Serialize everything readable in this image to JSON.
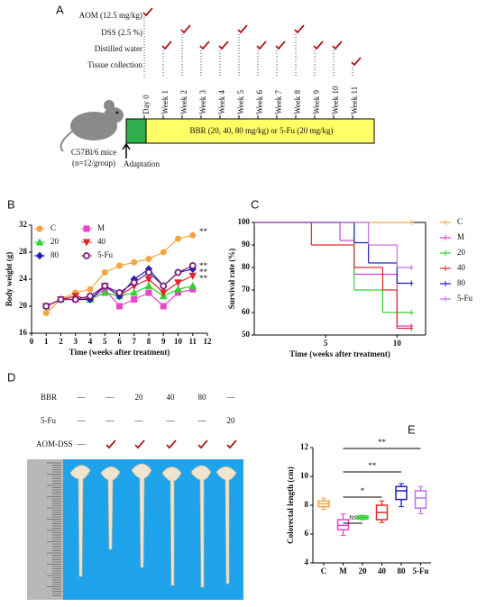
{
  "panel_a": {
    "letter": "A",
    "schedule": [
      "AOM (12.5 mg/kg)",
      "DSS (2.5 %)",
      "Distilled water",
      "Tissue collection"
    ],
    "timeline": [
      "Day 0",
      "Week 1",
      "Week 2",
      "Week 3",
      "Week 4",
      "Week 5",
      "Week 6",
      "Week 7",
      "Week 8",
      "Week 9",
      "Week 10",
      "Week 11"
    ],
    "treatment": "BBR (20, 40, 80 mg/kg) or 5-Fu (20 mg/kg)",
    "mouse": "C57Bl/6 mice",
    "group": "(n=12/group)",
    "adaptation": "Adaptation"
  },
  "panel_d": {
    "letter": "D",
    "rows": [
      {
        "label": "BBR",
        "cells": [
          "—",
          "—",
          "20",
          "40",
          "80",
          "—"
        ]
      },
      {
        "label": "5-Fu",
        "cells": [
          "—",
          "—",
          "—",
          "—",
          "—",
          "20"
        ]
      }
    ],
    "aom_dss": {
      "label": "AOM-DSS",
      "control": "—"
    }
  },
  "chart_data": [
    {
      "type": "line",
      "letter": "B",
      "x_label": "Time (weeks after treatment)",
      "y_label": "Body weight (g)",
      "x": [
        1,
        2,
        3,
        4,
        5,
        6,
        7,
        8,
        9,
        10,
        11
      ],
      "xlim": [
        0,
        12
      ],
      "xticks": [
        0,
        1,
        2,
        3,
        4,
        5,
        6,
        7,
        8,
        9,
        10,
        11,
        12
      ],
      "ylim": [
        16,
        32
      ],
      "yticks": [
        16,
        20,
        24,
        28,
        32
      ],
      "series": [
        {
          "name": "C",
          "color": "#f5a442",
          "marker": "circle",
          "values": [
            19,
            21,
            22,
            22.5,
            25,
            26,
            26.5,
            27,
            28,
            30,
            30.5
          ]
        },
        {
          "name": "M",
          "color": "#e845c8",
          "marker": "square",
          "values": [
            20,
            21,
            21,
            21,
            22.5,
            20,
            21,
            22,
            20,
            22,
            22.5
          ]
        },
        {
          "name": "20",
          "color": "#2fd22f",
          "marker": "triangle",
          "values": [
            20,
            21,
            21.5,
            21,
            22,
            21.5,
            22,
            23,
            21.5,
            22.5,
            23
          ]
        },
        {
          "name": "40",
          "color": "#e02828",
          "marker": "triangle-down",
          "values": [
            20,
            21,
            21.5,
            21,
            23,
            21.5,
            23,
            24,
            22,
            23.5,
            24.5
          ]
        },
        {
          "name": "80",
          "color": "#1f1fb8",
          "marker": "diamond",
          "values": [
            20,
            21,
            21,
            21,
            23,
            21.5,
            24,
            25.5,
            23,
            25,
            25.5
          ]
        },
        {
          "name": "5-Fu",
          "color": "#7a1f7a",
          "marker": "ring",
          "values": [
            20,
            21,
            21,
            21.5,
            23,
            22,
            23.5,
            25,
            23,
            25,
            26
          ]
        }
      ],
      "annotations": [
        "**",
        "**",
        "**",
        "**"
      ]
    },
    {
      "type": "step",
      "letter": "C",
      "x_label": "Time (weeks after treatment)",
      "y_label": "Survival rate (%)",
      "x": [
        0,
        4,
        6,
        7,
        8,
        9,
        10,
        11
      ],
      "xlim": [
        0,
        12
      ],
      "xticks": [
        5,
        10
      ],
      "ylim": [
        50,
        100
      ],
      "yticks": [
        50,
        60,
        70,
        80,
        90,
        100
      ],
      "series": [
        {
          "name": "C",
          "color": "#f5a442",
          "values": [
            100,
            100,
            100,
            100,
            100,
            100,
            100,
            100
          ]
        },
        {
          "name": "M",
          "color": "#d83cd0",
          "values": [
            100,
            100,
            92,
            77,
            77,
            77,
            54,
            54
          ]
        },
        {
          "name": "20",
          "color": "#2fd22f",
          "values": [
            100,
            100,
            100,
            70,
            70,
            60,
            60,
            60
          ]
        },
        {
          "name": "40",
          "color": "#e02828",
          "values": [
            100,
            90,
            90,
            80,
            80,
            70,
            53,
            53
          ]
        },
        {
          "name": "80",
          "color": "#1f1fb8",
          "values": [
            100,
            100,
            100,
            91,
            82,
            82,
            73,
            73
          ]
        },
        {
          "name": "5-Fu",
          "color": "#c070e8",
          "values": [
            100,
            100,
            100,
            100,
            90,
            90,
            80,
            80
          ]
        }
      ]
    },
    {
      "type": "box",
      "letter": "E",
      "y_label": "Colorectal length (cm)",
      "categories": [
        "C",
        "M",
        "20",
        "40",
        "80",
        "5-Fu"
      ],
      "colors": [
        "#f5a442",
        "#e845c8",
        "#2fd22f",
        "#e02828",
        "#1f1fb8",
        "#c070e8"
      ],
      "min": [
        7.7,
        5.9,
        7.0,
        6.8,
        7.9,
        7.4
      ],
      "q1": [
        7.9,
        6.3,
        7.05,
        7.0,
        8.4,
        7.8
      ],
      "median": [
        8.1,
        6.6,
        7.15,
        7.5,
        9.0,
        8.5
      ],
      "q3": [
        8.3,
        7.0,
        7.25,
        8.0,
        9.3,
        9.0
      ],
      "max": [
        8.5,
        7.4,
        7.3,
        8.3,
        9.5,
        9.3
      ],
      "ylim": [
        4,
        12
      ],
      "yticks": [
        4,
        6,
        8,
        10,
        12
      ],
      "significance": [
        "ns",
        "*",
        "**",
        "**"
      ]
    }
  ]
}
